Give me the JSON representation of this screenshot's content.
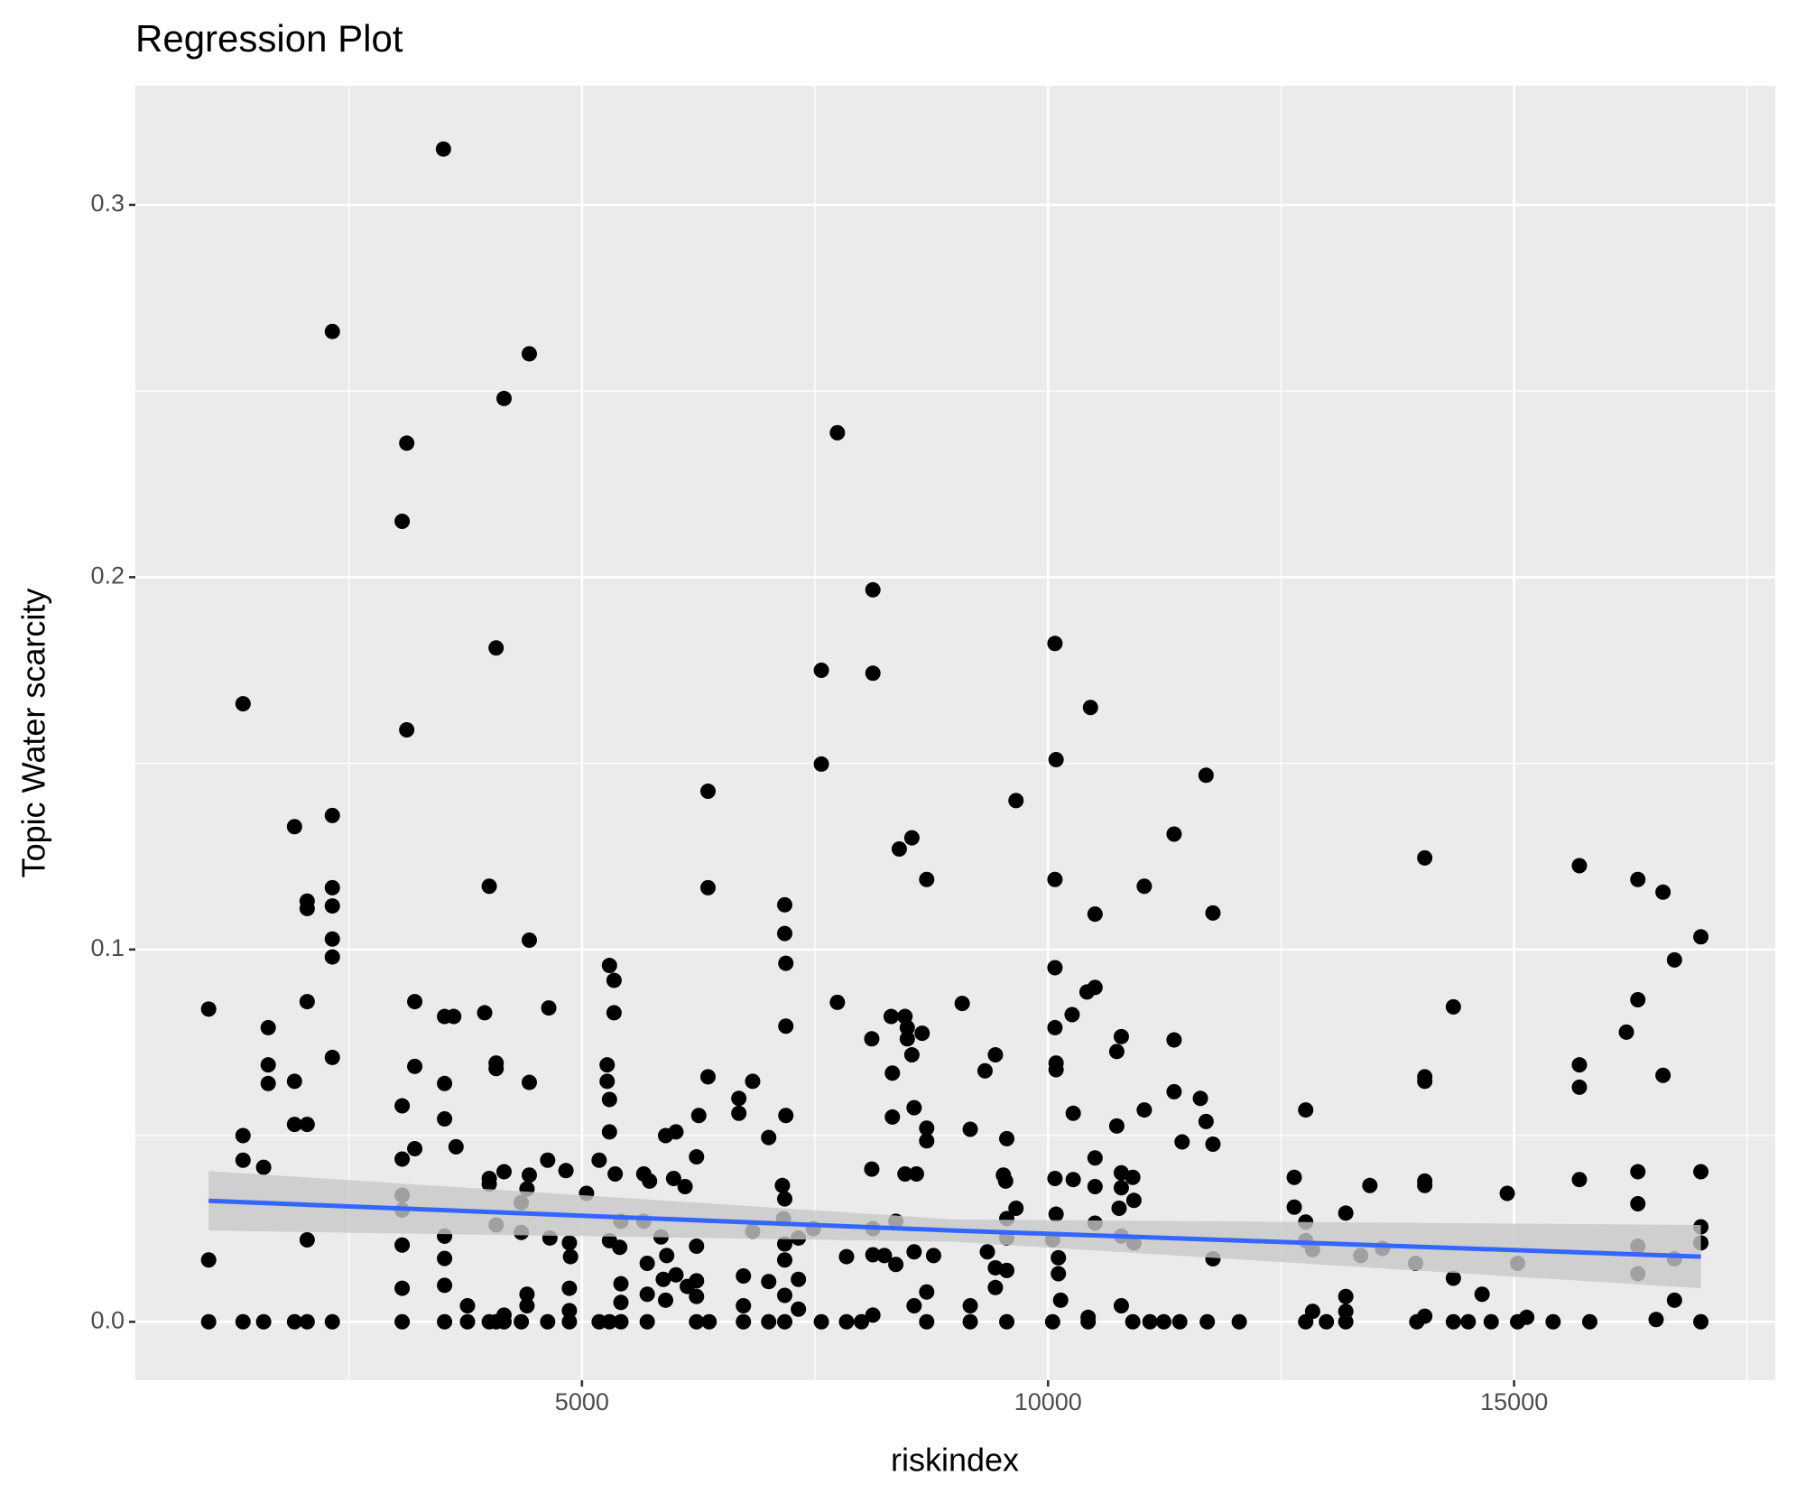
{
  "chart_data": {
    "type": "scatter",
    "title": "Regression Plot",
    "xlabel": "riskindex",
    "ylabel": "Topic Water scarcity",
    "xlim": [
      209,
      17801
    ],
    "ylim": [
      -0.0157,
      0.332
    ],
    "xticks": [
      5000,
      10000,
      15000
    ],
    "yticks": [
      {
        "value": 0,
        "label": "0.0"
      },
      0.1,
      0.2,
      0.3
    ],
    "minor_xticks": [
      2500,
      7500,
      12500,
      17500
    ],
    "minor_yticks": [
      0.05,
      0.15,
      0.25
    ],
    "grid": true,
    "color": "#000000",
    "x": [
      995,
      995,
      995,
      1364,
      1364,
      1364,
      1364,
      1585,
      1585,
      1634,
      1634,
      1634,
      1916,
      1916,
      1916,
      1916,
      2052,
      2052,
      2052,
      2052,
      2052,
      2052,
      2322,
      2322,
      2322,
      2322,
      2322,
      2322,
      2322,
      2322,
      3071,
      3071,
      3071,
      3071,
      3071,
      3071,
      3071,
      3071,
      3120,
      3120,
      3206,
      3206,
      3206,
      3514,
      3526,
      3526,
      3526,
      3526,
      3526,
      3526,
      3526,
      3624,
      3649,
      3772,
      3772,
      3956,
      4005,
      4005,
      4005,
      4005,
      4079,
      4079,
      4079,
      4079,
      4079,
      4164,
      4164,
      4164,
      4164,
      4349,
      4349,
      4349,
      4410,
      4410,
      4410,
      4435,
      4435,
      4435,
      4435,
      4644,
      4632,
      4632,
      4656,
      4828,
      4865,
      4877,
      4865,
      4865,
      4865,
      5049,
      5184,
      5184,
      5270,
      5270,
      5295,
      5295,
      5295,
      5295,
      5295,
      5344,
      5344,
      5356,
      5405,
      5418,
      5418,
      5418,
      5418,
      5663,
      5725,
      5663,
      5700,
      5700,
      5700,
      5848,
      5872,
      5897,
      5909,
      5897,
      6008,
      5983,
      6008,
      6106,
      6130,
      6229,
      6229,
      6229,
      6229,
      6253,
      6352,
      6352,
      6352,
      6229,
      6364,
      6683,
      6683,
      6732,
      6732,
      6732,
      6831,
      6831,
      7003,
      7003,
      7003,
      7175,
      7175,
      7187,
      7187,
      7187,
      7150,
      7175,
      7162,
      7175,
      7175,
      7175,
      7175,
      7322,
      7322,
      7322,
      7482,
      7568,
      7568,
      7568,
      7740,
      7740,
      7838,
      7838,
      7998,
      8109,
      8109,
      8121,
      8121,
      8121,
      8121,
      8121,
      8244,
      8317,
      8330,
      8330,
      8367,
      8367,
      8404,
      8465,
      8465,
      8490,
      8490,
      8539,
      8539,
      8563,
      8588,
      8563,
      8563,
      8649,
      8698,
      8698,
      8698,
      8698,
      8698,
      8772,
      9079,
      9165,
      9165,
      9165,
      9324,
      9349,
      9435,
      9435,
      9435,
      9521,
      9545,
      9557,
      9557,
      9557,
      9557,
      9557,
      9656,
      9656,
      10074,
      10086,
      10074,
      10074,
      10074,
      10086,
      10086,
      10074,
      10086,
      10049,
      10111,
      10111,
      10135,
      10049,
      10258,
      10270,
      10270,
      10418,
      10455,
      10504,
      10504,
      10504,
      10504,
      10504,
      10430,
      10430,
      10737,
      10737,
      10762,
      10786,
      10786,
      10786,
      10786,
      10786,
      10909,
      10921,
      10921,
      10909,
      11032,
      11032,
      11093,
      11241,
      11352,
      11352,
      11352,
      11413,
      11438,
      11634,
      11695,
      11695,
      11708,
      11769,
      11769,
      11769,
      12051,
      12641,
      12641,
      12764,
      12764,
      12764,
      12838,
      12764,
      12838,
      12986,
      13194,
      13194,
      13194,
      13194,
      13354,
      13452,
      13587,
      13943,
      13956,
      14041,
      14041,
      14041,
      14041,
      14041,
      14041,
      14348,
      14348,
      14348,
      14508,
      14656,
      14754,
      14926,
      15037,
      15037,
      15135,
      15418,
      15700,
      15700,
      15700,
      15700,
      15811,
      16204,
      16327,
      16327,
      16327,
      16327,
      16327,
      16327,
      16523,
      16597,
      16597,
      16720,
      16720,
      16720,
      17003,
      17003,
      17003,
      17003,
      17003
    ],
    "y": [
      0.084,
      0.0166,
      0,
      0.166,
      0.05,
      0.0434,
      0,
      0.0415,
      0,
      0.079,
      0.069,
      0.064,
      0.133,
      0.0646,
      0.053,
      0,
      0.113,
      0.111,
      0.086,
      0.053,
      0.022,
      0,
      0.266,
      0.136,
      0.1166,
      0.1117,
      0.1028,
      0.098,
      0.071,
      0,
      0.215,
      0.058,
      0.0437,
      0.034,
      0.03,
      0.0206,
      0.009,
      0,
      0.236,
      0.159,
      0.086,
      0.0686,
      0.0465,
      0.315,
      0.064,
      0.0545,
      0.023,
      0.017,
      0.0098,
      0,
      0.082,
      0.082,
      0.047,
      0.0043,
      0,
      0.083,
      0.117,
      0.0385,
      0.037,
      0,
      0.181,
      0.0695,
      0.068,
      0.026,
      0,
      0.248,
      0.0403,
      0.0018,
      0,
      0.032,
      0.024,
      0,
      0.0357,
      0.0074,
      0.0043,
      0.26,
      0.1025,
      0.0643,
      0.0394,
      0.0843,
      0.0434,
      0,
      0.0225,
      0.0406,
      0.0212,
      0.0175,
      0.009,
      0.003,
      0,
      0.0345,
      0.0434,
      0,
      0.0646,
      0.069,
      0.0957,
      0.0597,
      0.051,
      0.0218,
      0,
      0.0917,
      0.083,
      0.0397,
      0.02,
      0.027,
      0.0102,
      0.0052,
      0,
      0.0397,
      0.0378,
      0.027,
      0.0157,
      0.0074,
      0,
      0.0228,
      0.0114,
      0.0058,
      0.0178,
      0.05,
      0.051,
      0.0385,
      0.0126,
      0.0363,
      0.0095,
      0.011,
      0.0068,
      0.0203,
      0.0443,
      0.0554,
      0.1425,
      0.1166,
      0.0658,
      0,
      0,
      0.06,
      0.056,
      0.0123,
      0.0043,
      0,
      0.0646,
      0.0243,
      0.0495,
      0.0108,
      0,
      0.112,
      0.1043,
      0.0963,
      0.0794,
      0.0554,
      0.0366,
      0.033,
      0.0277,
      0.0209,
      0.0166,
      0.0071,
      0,
      0.0225,
      0.0114,
      0.0034,
      0.025,
      0.175,
      0.1498,
      0,
      0.2388,
      0.0858,
      0.0175,
      0,
      0,
      0.041,
      0.076,
      0.1966,
      0.1742,
      0.025,
      0.018,
      0.0018,
      0.0178,
      0.082,
      0.0668,
      0.055,
      0.027,
      0.0154,
      0.127,
      0.082,
      0.0397,
      0.079,
      0.076,
      0.13,
      0.0717,
      0.0575,
      0.0397,
      0.0188,
      0.0043,
      0.0775,
      0.1188,
      0.052,
      0.0486,
      0.008,
      0,
      0.0178,
      0.0855,
      0.0517,
      0.0043,
      0,
      0.0674,
      0.0188,
      0.0717,
      0.0092,
      0.0145,
      0.0394,
      0.0378,
      0.0492,
      0.0277,
      0.0225,
      0.0138,
      0,
      0.14,
      0.0305,
      0.1822,
      0.151,
      0.1188,
      0.0951,
      0.079,
      0.0695,
      0.0677,
      0.0385,
      0.0289,
      0.022,
      0.0172,
      0.0129,
      0.0058,
      0,
      0.0825,
      0.0382,
      0.056,
      0.0886,
      0.165,
      0.1095,
      0.0898,
      0.044,
      0.0363,
      0.0265,
      0.0012,
      0,
      0.0726,
      0.0526,
      0.0305,
      0.0766,
      0.04,
      0.036,
      0.023,
      0.0043,
      0.0388,
      0.0326,
      0.0212,
      0,
      0.117,
      0.0569,
      0,
      0,
      0.131,
      0.0757,
      0.0618,
      0,
      0.0483,
      0.06,
      0.1468,
      0.0538,
      0,
      0.1098,
      0.0477,
      0.0169,
      0,
      0.0388,
      0.0308,
      0.0569,
      0.0268,
      0.0218,
      0.0194,
      0,
      0.0028,
      0,
      0.0292,
      0.0068,
      0.0028,
      0,
      0.0178,
      0.0366,
      0.0197,
      0.0157,
      0,
      0.1246,
      0.0658,
      0.0646,
      0.0378,
      0.0366,
      0.0015,
      0.0846,
      0.0117,
      0,
      0,
      0.0074,
      0,
      0.0345,
      0.0157,
      0,
      0.0012,
      0,
      0.1225,
      0.069,
      0.063,
      0.0382,
      0,
      0.0778,
      0.1188,
      0.0865,
      0.0403,
      0.0317,
      0.0203,
      0.0129,
      0.0006,
      0.1154,
      0.0662,
      0.0972,
      0.0169,
      0.0058,
      0.1034,
      0.0403,
      0.0255,
      0.0212,
      0
    ],
    "regression": {
      "color": "#3366ff",
      "band_color": "#c8c8c8",
      "x": [
        995,
        9000,
        17003
      ],
      "y": [
        0.0325,
        0.0245,
        0.0175
      ],
      "lower": [
        0.0245,
        0.0215,
        0.009
      ],
      "upper": [
        0.0405,
        0.0275,
        0.026
      ]
    }
  }
}
